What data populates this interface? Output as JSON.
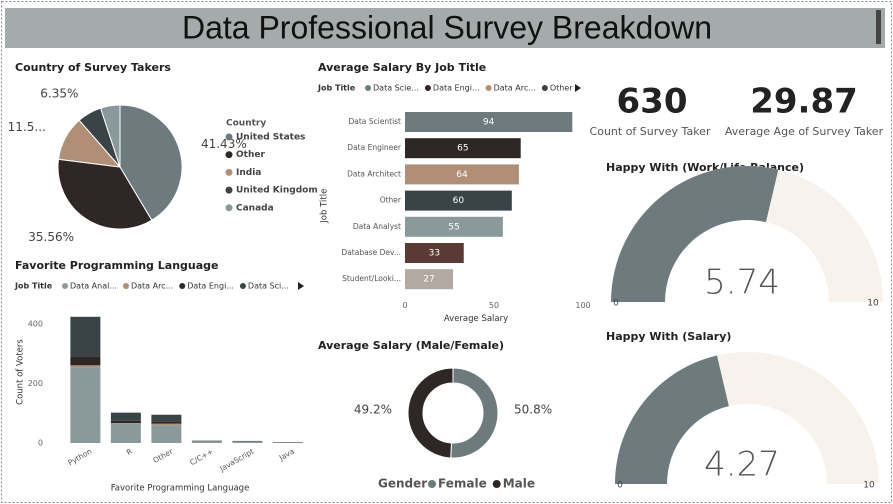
{
  "title": "Data Professional Survey Breakdown",
  "cards": [
    {
      "value": 630,
      "label": "Count of Survey Taker"
    },
    {
      "value": 29.87,
      "label": "Average Age of  Survey Taker"
    }
  ],
  "chart_data": [
    {
      "type": "pie",
      "title": "Country of Survey Takers",
      "legend_title": "Country",
      "categories": [
        "United States",
        "Other",
        "India",
        "United Kingdom",
        "Canada"
      ],
      "values": [
        41.43,
        35.56,
        11.59,
        6.35,
        5.07
      ],
      "value_labels": [
        "41.43%",
        "35.56%",
        "11.5...",
        "6.35%",
        null
      ],
      "colors": [
        "#6e7b7e",
        "#2f2626",
        "#b08f76",
        "#3a4346",
        "#8a9a9c"
      ]
    },
    {
      "type": "hbar",
      "title": "Average Salary By Job Title",
      "legend": {
        "title": "Job Title",
        "items": [
          "Data Scie...",
          "Data Engi...",
          "Data Arc...",
          "Other"
        ]
      },
      "categories": [
        "Data Scientist",
        "Data Engineer",
        "Data Architect",
        "Other",
        "Data Analyst",
        "Database Dev...",
        "Student/Looki..."
      ],
      "values": [
        94,
        65,
        64,
        60,
        55,
        33,
        27
      ],
      "colors": [
        "#6e7b7e",
        "#2f2626",
        "#b08f76",
        "#3a4346",
        "#8a9a9c",
        "#5a3a35",
        "#b3a9a3"
      ],
      "xlim": [
        0,
        100
      ],
      "xticks": [
        0,
        50,
        100
      ],
      "x_label": "Average Salary",
      "y_label": "Job Title"
    },
    {
      "type": "stacked_bar",
      "title": "Favorite Programming Language",
      "legend_title": "Job Title",
      "categories": [
        "Python",
        "R",
        "Other",
        "C/C++",
        "JavaScript",
        "Java"
      ],
      "series": [
        {
          "name": "Data Anal...",
          "color": "#8a9a9c",
          "values": [
            255,
            65,
            60,
            6,
            5,
            2
          ]
        },
        {
          "name": "Data Arc...",
          "color": "#b08f76",
          "values": [
            6,
            2,
            5,
            0,
            0,
            0
          ]
        },
        {
          "name": "Data Engi...",
          "color": "#2f2626",
          "values": [
            28,
            8,
            8,
            1,
            1,
            1
          ]
        },
        {
          "name": "Data Sci...",
          "color": "#3a4346",
          "values": [
            135,
            27,
            22,
            1,
            1,
            0
          ]
        }
      ],
      "ylim": [
        0,
        430
      ],
      "yticks": [
        0,
        200,
        400
      ],
      "x_label": "Favorite Programming Language",
      "y_label": "Count of Voters"
    },
    {
      "type": "donut",
      "title": "Average Salary (Male/Female)",
      "legend_title": "Gender",
      "categories": [
        "Female",
        "Male"
      ],
      "values": [
        50.8,
        49.2
      ],
      "value_labels": [
        "50.8%",
        "49.2%"
      ],
      "colors": [
        "#6e7b7e",
        "#2f2626"
      ]
    },
    {
      "type": "gauge",
      "title": "Happy With (Work/Life Balance)",
      "value": 5.74,
      "ylim": [
        0,
        10
      ],
      "yticks": [
        0,
        10
      ],
      "color": "#6e7b7e"
    },
    {
      "type": "gauge",
      "title": "Happy With (Salary)",
      "value": 4.27,
      "ylim": [
        0,
        10
      ],
      "yticks": [
        0,
        10
      ],
      "color": "#6e7b7e"
    }
  ]
}
